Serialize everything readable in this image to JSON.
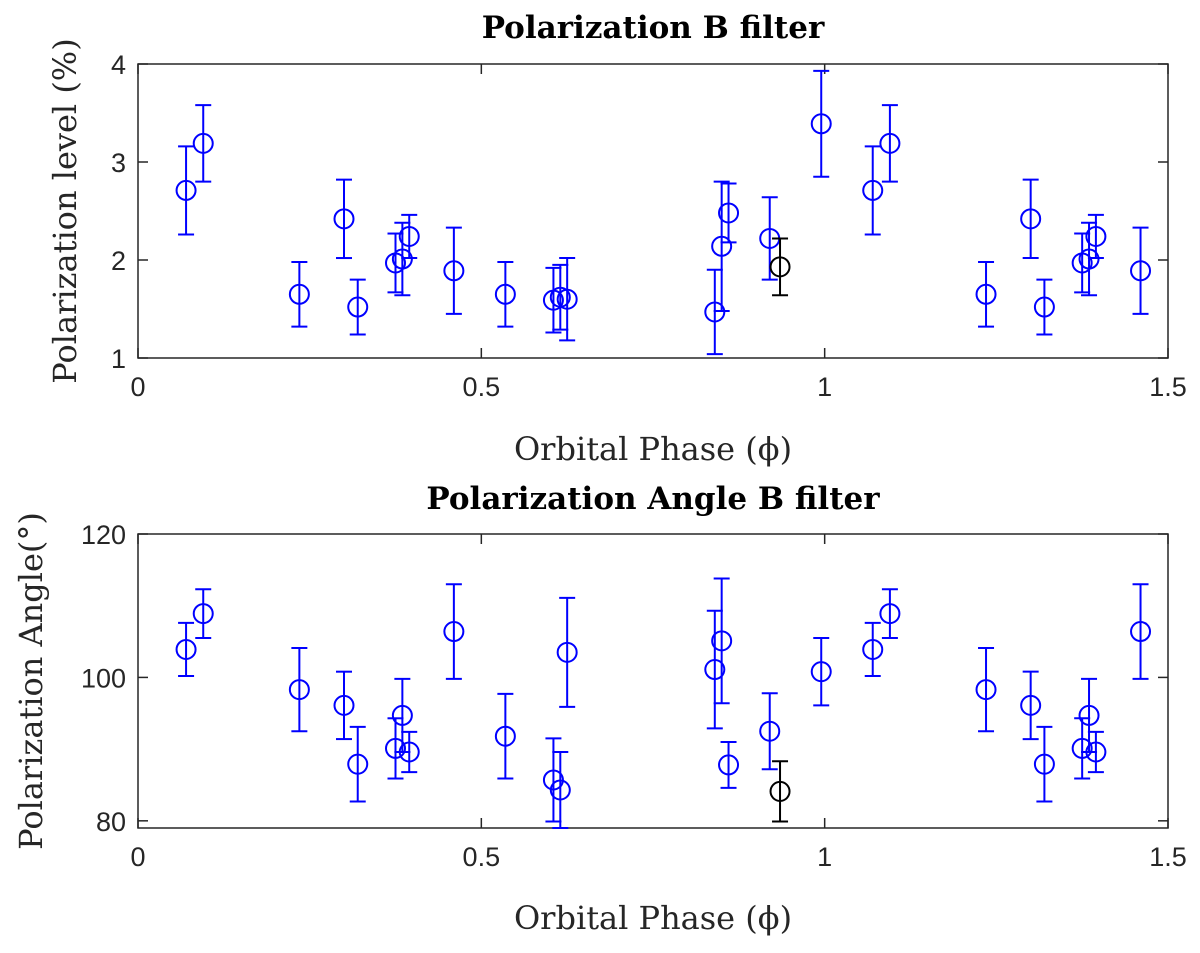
{
  "chart_data": [
    {
      "type": "scatter",
      "title": "Polarization B filter",
      "xlabel": "Orbital Phase (ϕ)",
      "ylabel": "Polarization level (%)",
      "xlim": [
        0,
        1.5
      ],
      "ylim": [
        1,
        4
      ],
      "xticks": [
        0,
        0.5,
        1,
        1.5
      ],
      "xtick_labels": [
        "0",
        "0.5",
        "1",
        "1.5"
      ],
      "yticks": [
        1,
        2,
        3,
        4
      ],
      "ytick_labels": [
        "1",
        "2",
        "3",
        "4"
      ],
      "grid": false,
      "series": [
        {
          "color": "#0000ff",
          "x": [
            0.07,
            0.095,
            0.235,
            0.3,
            0.32,
            0.375,
            0.385,
            0.395,
            0.46,
            0.535,
            0.605,
            0.615,
            0.625,
            0.84,
            0.85,
            0.86,
            0.92,
            0.995,
            1.07,
            1.095,
            1.235,
            1.3,
            1.32,
            1.375,
            1.385,
            1.395,
            1.46
          ],
          "y": [
            2.71,
            3.19,
            1.65,
            2.42,
            1.52,
            1.97,
            2.01,
            2.24,
            1.89,
            1.65,
            1.59,
            1.62,
            1.6,
            1.47,
            2.14,
            2.48,
            2.22,
            3.39,
            2.71,
            3.19,
            1.65,
            2.42,
            1.52,
            1.97,
            2.01,
            2.24,
            1.89
          ],
          "err": [
            0.45,
            0.39,
            0.33,
            0.4,
            0.28,
            0.3,
            0.37,
            0.22,
            0.44,
            0.33,
            0.33,
            0.33,
            0.42,
            0.43,
            0.66,
            0.3,
            0.42,
            0.54,
            0.45,
            0.39,
            0.33,
            0.4,
            0.28,
            0.3,
            0.37,
            0.22,
            0.44
          ]
        },
        {
          "color": "#000000",
          "x": [
            0.935
          ],
          "y": [
            1.93
          ],
          "err": [
            0.29
          ]
        }
      ]
    },
    {
      "type": "scatter",
      "title": "Polarization Angle B filter",
      "xlabel": "Orbital Phase (ϕ)",
      "ylabel": "Polarization Angle(°)",
      "xlim": [
        0,
        1.5
      ],
      "ylim": [
        79,
        120
      ],
      "xticks": [
        0,
        0.5,
        1,
        1.5
      ],
      "xtick_labels": [
        "0",
        "0.5",
        "1",
        "1.5"
      ],
      "yticks": [
        80,
        100,
        120
      ],
      "ytick_labels": [
        "80",
        "100",
        "120"
      ],
      "grid": false,
      "series": [
        {
          "color": "#0000ff",
          "x": [
            0.07,
            0.095,
            0.235,
            0.3,
            0.32,
            0.375,
            0.385,
            0.395,
            0.46,
            0.535,
            0.605,
            0.615,
            0.625,
            0.84,
            0.85,
            0.86,
            0.92,
            0.995,
            1.07,
            1.095,
            1.235,
            1.3,
            1.32,
            1.375,
            1.385,
            1.395,
            1.46
          ],
          "y": [
            103.9,
            108.9,
            98.3,
            96.1,
            87.9,
            90.1,
            94.7,
            89.6,
            106.4,
            91.8,
            85.7,
            84.3,
            103.5,
            101.1,
            105.1,
            87.8,
            92.5,
            100.8,
            103.9,
            108.9,
            98.3,
            96.1,
            87.9,
            90.1,
            94.7,
            89.6,
            106.4
          ],
          "err": [
            3.7,
            3.4,
            5.8,
            4.7,
            5.2,
            4.2,
            5.1,
            2.8,
            6.6,
            5.9,
            5.8,
            5.3,
            7.6,
            8.2,
            8.7,
            3.2,
            5.3,
            4.7,
            3.7,
            3.4,
            5.8,
            4.7,
            5.2,
            4.2,
            5.1,
            2.8,
            6.6
          ]
        },
        {
          "color": "#000000",
          "x": [
            0.935
          ],
          "y": [
            84.1
          ],
          "err": [
            4.2
          ]
        }
      ]
    }
  ]
}
